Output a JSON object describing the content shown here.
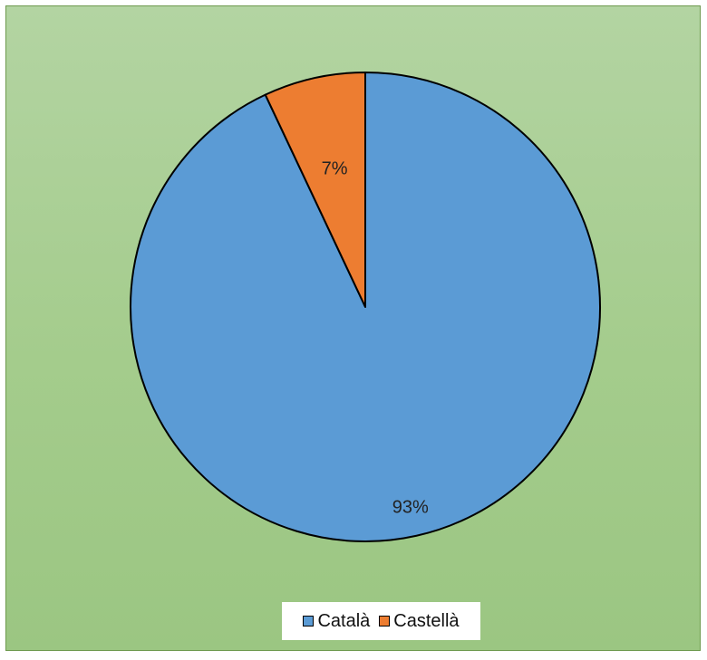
{
  "chart_data": {
    "type": "pie",
    "categories": [
      "Català",
      "Castellà"
    ],
    "values": [
      93,
      7
    ],
    "value_labels": [
      "93%",
      "7%"
    ],
    "colors": [
      "#5b9bd5",
      "#ed7d31"
    ],
    "legend": "bottom",
    "start_angle": "12 o'clock",
    "direction": "counter-clockwise for second slice"
  },
  "legend": {
    "items": [
      {
        "label": "Català",
        "color": "#5b9bd5"
      },
      {
        "label": "Castellà",
        "color": "#ed7d31"
      }
    ]
  }
}
